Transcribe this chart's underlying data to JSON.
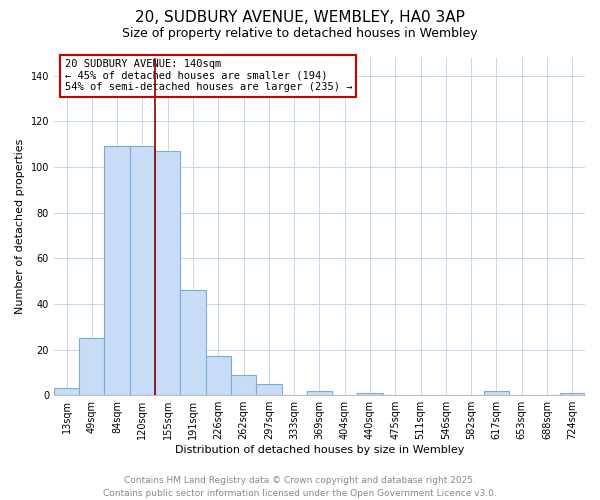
{
  "title": "20, SUDBURY AVENUE, WEMBLEY, HA0 3AP",
  "subtitle": "Size of property relative to detached houses in Wembley",
  "xlabel": "Distribution of detached houses by size in Wembley",
  "ylabel": "Number of detached properties",
  "bar_color": "#c8ddf5",
  "bar_edge_color": "#7aabdc",
  "background_color": "#ffffff",
  "grid_color": "#c5d8f0",
  "categories": [
    "13sqm",
    "49sqm",
    "84sqm",
    "120sqm",
    "155sqm",
    "191sqm",
    "226sqm",
    "262sqm",
    "297sqm",
    "333sqm",
    "369sqm",
    "404sqm",
    "440sqm",
    "475sqm",
    "511sqm",
    "546sqm",
    "582sqm",
    "617sqm",
    "653sqm",
    "688sqm",
    "724sqm"
  ],
  "values": [
    3,
    25,
    109,
    109,
    107,
    46,
    17,
    9,
    5,
    0,
    2,
    0,
    1,
    0,
    0,
    0,
    0,
    2,
    0,
    0,
    1
  ],
  "ylim": [
    0,
    148
  ],
  "yticks": [
    0,
    20,
    40,
    60,
    80,
    100,
    120,
    140
  ],
  "annotation_title": "20 SUDBURY AVENUE: 140sqm",
  "annotation_line2": "← 45% of detached houses are smaller (194)",
  "annotation_line3": "54% of semi-detached houses are larger (235) →",
  "annotation_box_color": "#ffffff",
  "annotation_box_edge": "#cc0000",
  "red_line_x": 3.5,
  "footer_line1": "Contains HM Land Registry data © Crown copyright and database right 2025.",
  "footer_line2": "Contains public sector information licensed under the Open Government Licence v3.0.",
  "title_fontsize": 11,
  "subtitle_fontsize": 9,
  "axis_label_fontsize": 8,
  "tick_fontsize": 7,
  "annotation_fontsize": 7.5,
  "footer_fontsize": 6.5
}
